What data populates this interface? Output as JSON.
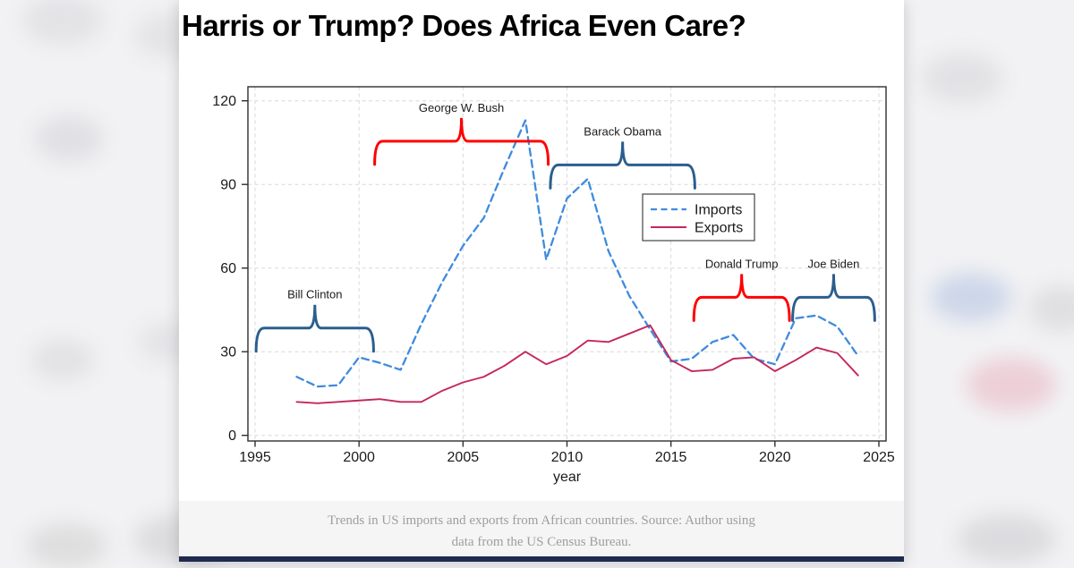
{
  "page": {
    "title": "Harris or Trump? Does Africa Even Care?",
    "caption_line1": "Trends in US imports and exports from African countries. Source: Author using",
    "caption_line2": "data from the US Census Bureau."
  },
  "chart_data": {
    "type": "line",
    "title": "Harris or Trump? Does Africa Even Care?",
    "xlabel": "year",
    "ylabel": "",
    "xlim": [
      1995,
      2025
    ],
    "ylim": [
      0,
      120
    ],
    "x_ticks": [
      1995,
      2000,
      2005,
      2010,
      2015,
      2020,
      2025
    ],
    "y_ticks": [
      0,
      30,
      60,
      90,
      120
    ],
    "grid": true,
    "legend_position": "inside upper right of plot",
    "x": [
      1997,
      1998,
      1999,
      2000,
      2001,
      2002,
      2003,
      2004,
      2005,
      2006,
      2007,
      2008,
      2009,
      2010,
      2011,
      2012,
      2013,
      2014,
      2015,
      2016,
      2017,
      2018,
      2019,
      2020,
      2021,
      2022,
      2023,
      2024
    ],
    "series": [
      {
        "name": "Imports",
        "style": "dashed",
        "color": "#3f8bdd",
        "values": [
          21,
          17.5,
          18,
          28,
          26,
          23.5,
          40,
          55,
          68,
          78,
          96,
          113,
          63,
          85,
          92,
          66,
          50,
          38,
          26.5,
          27.5,
          33.5,
          36,
          27.5,
          25.5,
          42,
          43,
          39,
          28.5
        ]
      },
      {
        "name": "Exports",
        "style": "solid",
        "color": "#c5275a",
        "values": [
          12,
          11.5,
          12,
          12.5,
          13,
          12,
          12,
          16,
          19,
          21,
          25,
          30,
          25.5,
          28.5,
          34,
          33.5,
          36.5,
          39.5,
          27,
          23,
          23.5,
          27.5,
          28,
          23,
          27,
          31.5,
          29.5,
          21.5
        ]
      }
    ],
    "annotations": {
      "braces": [
        {
          "label": "Bill Clinton",
          "color": "#2b5e8e",
          "year_start": 1995.05,
          "year_end": 2000.7,
          "level": 38.5
        },
        {
          "label": "George W. Bush",
          "color": "#fe0000",
          "year_start": 2000.75,
          "year_end": 2009.1,
          "level": 105.5
        },
        {
          "label": "Barack Obama",
          "color": "#2b5e8e",
          "year_start": 2009.2,
          "year_end": 2016.15,
          "level": 97
        },
        {
          "label": "Donald Trump",
          "color": "#fe0000",
          "year_start": 2016.1,
          "year_end": 2020.7,
          "level": 49.5
        },
        {
          "label": "Joe Biden",
          "color": "#2b5e8e",
          "year_start": 2020.85,
          "year_end": 2024.8,
          "level": 49.5
        }
      ]
    }
  },
  "colors": {
    "imports_line": "#3f8bdd",
    "exports_line": "#c5275a",
    "brace_red": "#fe0000",
    "brace_blue": "#2b5e8e",
    "frame": "#2f2f2f",
    "gridline": "#d8d8d8",
    "caption_bg": "#f5f5f6",
    "bottom_bar": "#1f2b4e"
  }
}
